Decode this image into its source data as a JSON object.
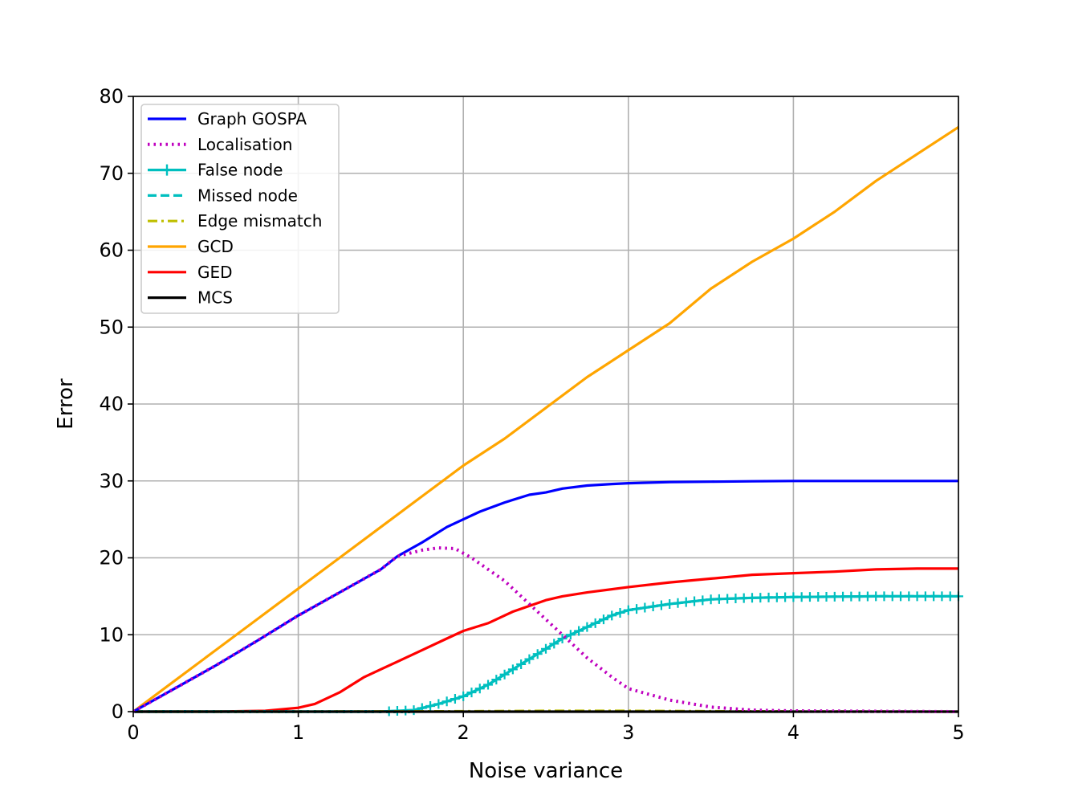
{
  "chart_data": {
    "type": "line",
    "xlabel": "Noise variance",
    "ylabel": "Error",
    "xlim": [
      0,
      5
    ],
    "ylim": [
      0,
      80
    ],
    "xticks": [
      "0",
      "1",
      "2",
      "3",
      "4",
      "5"
    ],
    "yticks": [
      "0",
      "10",
      "20",
      "30",
      "40",
      "50",
      "60",
      "70",
      "80"
    ],
    "grid": true,
    "legend_position": "top-left",
    "series": [
      {
        "name": "Graph GOSPA",
        "color": "#0000ff",
        "style": "solid",
        "x": [
          0,
          0.25,
          0.5,
          0.75,
          1.0,
          1.25,
          1.5,
          1.6,
          1.75,
          1.9,
          2.0,
          2.1,
          2.25,
          2.4,
          2.5,
          2.6,
          2.75,
          2.9,
          3.0,
          3.25,
          3.5,
          3.75,
          4.0,
          4.5,
          5.0
        ],
        "y": [
          0,
          3.0,
          6.0,
          9.2,
          12.5,
          15.5,
          18.5,
          20.2,
          22.0,
          24.0,
          25.0,
          26.0,
          27.2,
          28.2,
          28.5,
          29.0,
          29.4,
          29.6,
          29.7,
          29.85,
          29.9,
          29.95,
          30.0,
          30.0,
          30.0
        ]
      },
      {
        "name": "Localisation",
        "color": "#bf00bf",
        "style": "dotted",
        "x": [
          0,
          0.25,
          0.5,
          0.75,
          1.0,
          1.25,
          1.5,
          1.6,
          1.75,
          1.85,
          1.95,
          2.05,
          2.15,
          2.25,
          2.4,
          2.5,
          2.6,
          2.75,
          2.9,
          3.0,
          3.25,
          3.5,
          3.75,
          4.0,
          4.5,
          5.0
        ],
        "y": [
          0,
          3.0,
          6.0,
          9.2,
          12.5,
          15.5,
          18.5,
          20.2,
          21.0,
          21.3,
          21.2,
          20.0,
          18.5,
          17.0,
          14.0,
          12.0,
          10.0,
          7.0,
          4.5,
          3.0,
          1.5,
          0.6,
          0.2,
          0.1,
          0.05,
          0
        ]
      },
      {
        "name": "False node",
        "color": "#00bfbf",
        "style": "solid-plus",
        "x": [
          0,
          0.5,
          1.0,
          1.5,
          1.7,
          1.85,
          2.0,
          2.15,
          2.3,
          2.45,
          2.6,
          2.75,
          2.9,
          3.0,
          3.25,
          3.5,
          3.75,
          4.0,
          4.5,
          5.0
        ],
        "y": [
          0,
          0,
          0,
          0,
          0.2,
          1.0,
          2.0,
          3.5,
          5.5,
          7.5,
          9.5,
          11.0,
          12.5,
          13.2,
          14.0,
          14.6,
          14.8,
          14.9,
          15.0,
          15.0
        ]
      },
      {
        "name": "Missed node",
        "color": "#00bfbf",
        "style": "dashed",
        "x": [
          0,
          0.5,
          1.0,
          1.5,
          1.7,
          1.85,
          2.0,
          2.15,
          2.3,
          2.45,
          2.6,
          2.75,
          2.9,
          3.0,
          3.25,
          3.5,
          3.75,
          4.0,
          4.5,
          5.0
        ],
        "y": [
          0,
          0,
          0,
          0,
          0.2,
          1.0,
          2.0,
          3.5,
          5.5,
          7.5,
          9.5,
          11.0,
          12.5,
          13.2,
          14.0,
          14.6,
          14.8,
          14.9,
          15.0,
          15.0
        ]
      },
      {
        "name": "Edge mismatch",
        "color": "#bfbf00",
        "style": "dashdot",
        "x": [
          0,
          1.0,
          2.0,
          2.5,
          3.0,
          3.5,
          4.0,
          5.0
        ],
        "y": [
          0,
          0,
          0.05,
          0.1,
          0.1,
          0.05,
          0.02,
          0
        ]
      },
      {
        "name": "GCD",
        "color": "#ffa500",
        "style": "solid",
        "x": [
          0,
          0.25,
          0.5,
          0.75,
          1.0,
          1.25,
          1.5,
          1.75,
          2.0,
          2.25,
          2.5,
          2.75,
          3.0,
          3.25,
          3.5,
          3.75,
          4.0,
          4.25,
          4.5,
          4.75,
          5.0
        ],
        "y": [
          0,
          4.0,
          8.0,
          12.0,
          16.0,
          20.0,
          24.0,
          28.0,
          32.0,
          35.5,
          39.5,
          43.5,
          47.0,
          50.5,
          55.0,
          58.5,
          61.5,
          65.0,
          69.0,
          72.5,
          76.0
        ]
      },
      {
        "name": "GED",
        "color": "#ff0000",
        "style": "solid",
        "x": [
          0,
          0.5,
          0.8,
          1.0,
          1.1,
          1.25,
          1.4,
          1.5,
          1.6,
          1.75,
          1.9,
          2.0,
          2.15,
          2.3,
          2.5,
          2.6,
          2.75,
          3.0,
          3.25,
          3.5,
          3.75,
          4.0,
          4.25,
          4.5,
          4.75,
          5.0
        ],
        "y": [
          0,
          0,
          0.1,
          0.5,
          1.0,
          2.5,
          4.5,
          5.5,
          6.5,
          8.0,
          9.5,
          10.5,
          11.5,
          13.0,
          14.5,
          15.0,
          15.5,
          16.2,
          16.8,
          17.3,
          17.8,
          18.0,
          18.2,
          18.5,
          18.6,
          18.6
        ]
      },
      {
        "name": "MCS",
        "color": "#000000",
        "style": "solid",
        "x": [
          0,
          5
        ],
        "y": [
          0,
          0
        ]
      }
    ]
  }
}
